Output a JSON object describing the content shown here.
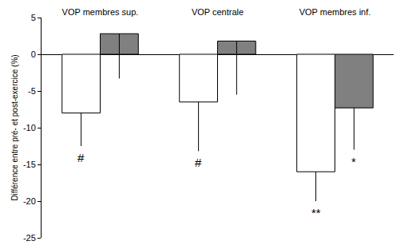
{
  "chart_data": {
    "type": "bar",
    "y_label": "Différence entre pré- et post-exercice (%)",
    "categories": [
      "VOP membres sup.",
      "VOP centrale",
      "VOP membres inf."
    ],
    "series": [
      {
        "color": "#ffffff",
        "values": [
          -8,
          -6.5,
          -16
        ],
        "errors": [
          4.5,
          6.7,
          4
        ]
      },
      {
        "color": "#808080",
        "values": [
          2.8,
          1.8,
          -7.3
        ],
        "errors": [
          6.1,
          7.3,
          5.7
        ]
      }
    ],
    "annotations": [
      {
        "category": 0,
        "series": 0,
        "text": "#"
      },
      {
        "category": 1,
        "series": 0,
        "text": "#"
      },
      {
        "category": 2,
        "series": 0,
        "text": "**"
      },
      {
        "category": 2,
        "series": 1,
        "text": "*"
      }
    ],
    "ylim": [
      -25,
      5
    ],
    "yticks": [
      -25,
      -20,
      -15,
      -10,
      -5,
      0,
      5
    ],
    "grid": false
  }
}
